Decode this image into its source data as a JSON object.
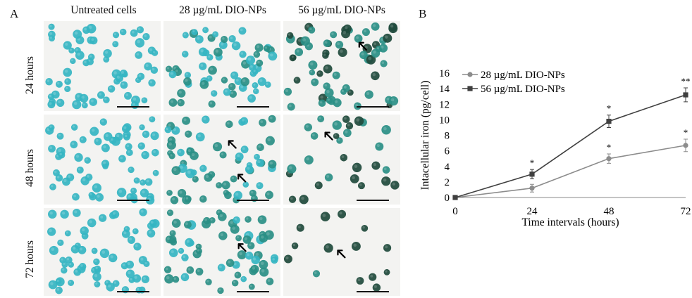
{
  "panels": {
    "a_label": "A",
    "b_label": "B"
  },
  "micrograph_grid": {
    "columns": [
      "Untreated cells",
      "28 µg/mL DIO-NPs",
      "56 µg/mL DIO-NPs"
    ],
    "rows": [
      "24 hours",
      "48 hours",
      "72 hours"
    ],
    "colors": {
      "background": "#f3f3f1",
      "cell_light": "#35b5c2",
      "cell_mid": "#2a8f86",
      "cell_dark": "#1f4a3c",
      "scale_bar": "#111111"
    },
    "arrows": {
      "r0c0": 0,
      "r0c1": 0,
      "r0c2": 1,
      "r1c0": 0,
      "r1c1": 2,
      "r1c2": 1,
      "r2c0": 0,
      "r2c1": 1,
      "r2c2": 1
    }
  },
  "chart_data": {
    "type": "line",
    "xlabel": "Time intervals (hours)",
    "ylabel": "Intacellular iron (pg/cell)",
    "x": [
      0,
      24,
      48,
      72
    ],
    "xlim": [
      0,
      72
    ],
    "ylim": [
      0,
      16
    ],
    "yticks": [
      0,
      2,
      4,
      6,
      8,
      10,
      12,
      14,
      16
    ],
    "xticks": [
      0,
      24,
      48,
      72
    ],
    "grid": false,
    "legend_position": "top-left",
    "series": [
      {
        "name": "28 µg/mL DIO-NPs",
        "values": [
          0,
          1.2,
          5.0,
          6.7
        ],
        "errors": [
          0,
          0.5,
          0.6,
          0.8
        ],
        "significance": [
          "",
          "",
          "*",
          "*"
        ],
        "marker": "circle",
        "color": "#8c8c8c"
      },
      {
        "name": "56 µg/mL DIO-NPs",
        "values": [
          0,
          3.0,
          9.8,
          13.2
        ],
        "errors": [
          0,
          0.6,
          0.8,
          0.9
        ],
        "significance": [
          "",
          "*",
          "*",
          "**"
        ],
        "marker": "square",
        "color": "#404040"
      }
    ]
  }
}
